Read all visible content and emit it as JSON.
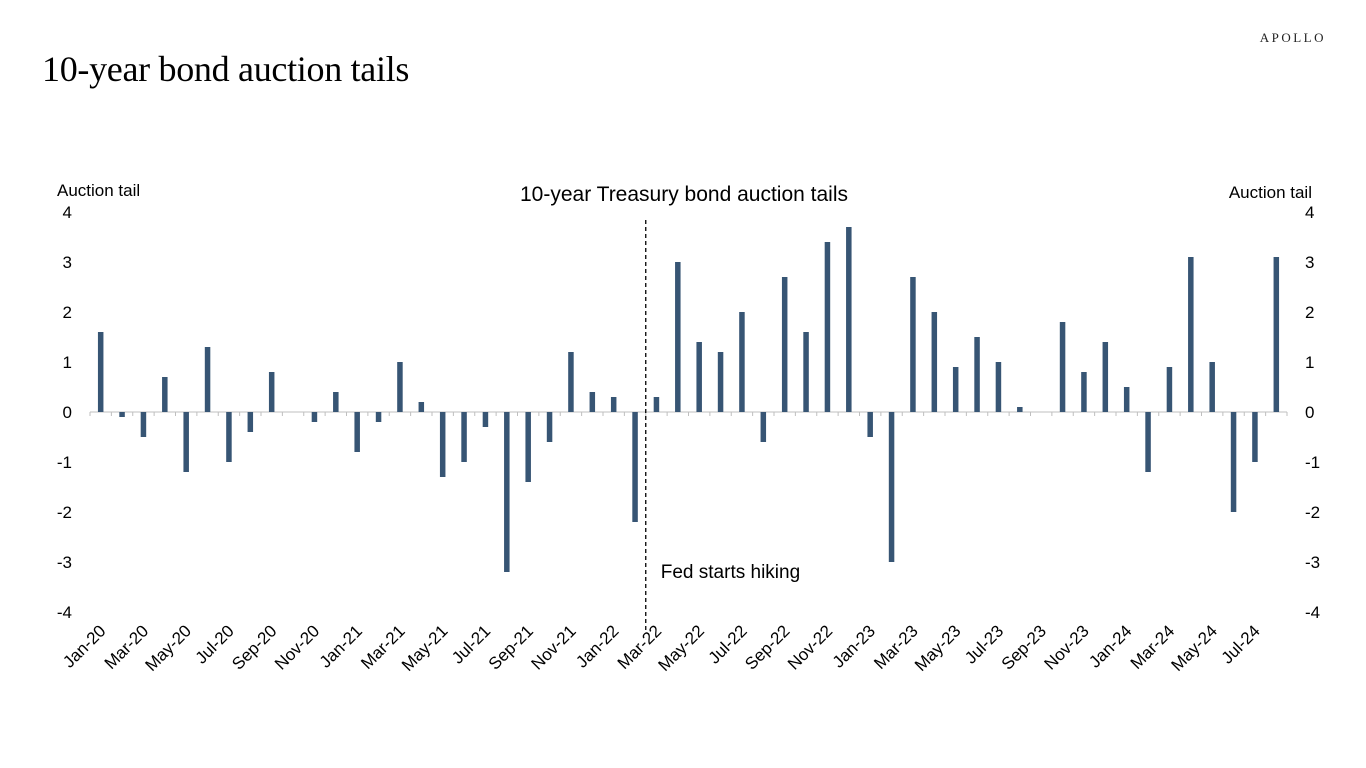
{
  "page": {
    "title": "10-year bond auction tails",
    "brand": "APOLLO"
  },
  "colors": {
    "bar": "#375574",
    "axis": "#bfbfbf",
    "text": "#000000"
  },
  "chart_data": {
    "type": "bar",
    "title": "10-year Treasury bond auction tails",
    "ylabel_left": "Auction tail",
    "ylabel_right": "Auction tail",
    "ylim": [
      -4,
      4
    ],
    "yticks": [
      4,
      3,
      2,
      1,
      0,
      -1,
      -2,
      -3,
      -4
    ],
    "grid": false,
    "legend": "none",
    "x_tick_labels": [
      "Jan-20",
      "Mar-20",
      "May-20",
      "Jul-20",
      "Sep-20",
      "Nov-20",
      "Jan-21",
      "Mar-21",
      "May-21",
      "Jul-21",
      "Sep-21",
      "Nov-21",
      "Jan-22",
      "Mar-22",
      "May-22",
      "Jul-22",
      "Sep-22",
      "Nov-22",
      "Jan-23",
      "Mar-23",
      "May-23",
      "Jul-23",
      "Sep-23",
      "Nov-23",
      "Jan-24",
      "Mar-24",
      "May-24",
      "Jul-24"
    ],
    "categories": [
      "Jan-20",
      "Feb-20",
      "Mar-20",
      "Apr-20",
      "May-20",
      "Jun-20",
      "Jul-20",
      "Aug-20",
      "Sep-20",
      "Oct-20",
      "Nov-20",
      "Dec-20",
      "Jan-21",
      "Feb-21",
      "Mar-21",
      "Apr-21",
      "May-21",
      "Jun-21",
      "Jul-21",
      "Aug-21",
      "Sep-21",
      "Oct-21",
      "Nov-21",
      "Dec-21",
      "Jan-22",
      "Feb-22",
      "Mar-22",
      "Apr-22",
      "May-22",
      "Jun-22",
      "Jul-22",
      "Aug-22",
      "Sep-22",
      "Oct-22",
      "Nov-22",
      "Dec-22",
      "Jan-23",
      "Feb-23",
      "Mar-23",
      "Apr-23",
      "May-23",
      "Jun-23",
      "Jul-23",
      "Aug-23",
      "Sep-23",
      "Oct-23",
      "Nov-23",
      "Dec-23",
      "Jan-24",
      "Feb-24",
      "Mar-24",
      "Apr-24",
      "May-24",
      "Jun-24",
      "Jul-24",
      "Aug-24"
    ],
    "values": [
      1.6,
      -0.1,
      -0.5,
      0.7,
      -1.2,
      1.3,
      -1.0,
      -0.4,
      0.8,
      0,
      -0.2,
      0.4,
      -0.8,
      -0.2,
      1.0,
      0.2,
      -1.3,
      -1.0,
      -0.3,
      -3.2,
      -1.4,
      -0.6,
      1.2,
      0.4,
      0.3,
      -2.2,
      0.3,
      3.0,
      1.4,
      1.2,
      2.0,
      -0.6,
      2.7,
      1.6,
      3.4,
      3.7,
      -0.5,
      -3.0,
      2.7,
      2.0,
      0.9,
      1.5,
      1.0,
      0.1,
      0,
      1.8,
      0.8,
      1.4,
      0.5,
      -1.2,
      0.9,
      3.1,
      1.0,
      -2.0,
      -1.0,
      3.1
    ],
    "annotations": [
      {
        "text": "Fed starts hiking",
        "after_category": "Feb-22",
        "style": "dashed-vertical-line"
      }
    ]
  }
}
